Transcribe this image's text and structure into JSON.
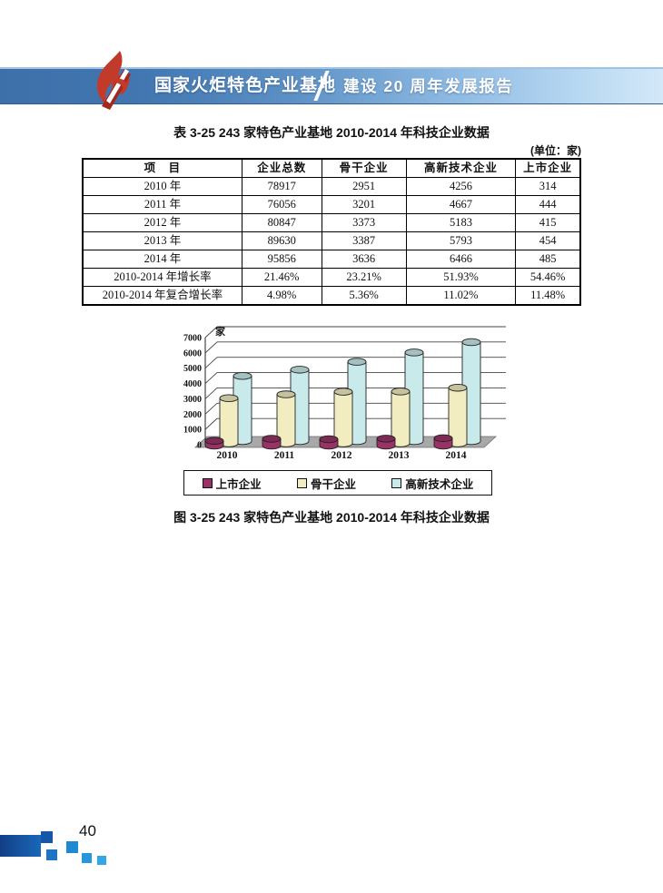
{
  "banner": {
    "site_title": "国家火炬特色产业基地",
    "report_title": "建设 20 周年发展报告"
  },
  "table": {
    "title": "表 3-25  243 家特色产业基地 2010-2014 年科技企业数据",
    "unit": "(单位：家)",
    "headers": [
      "项　目",
      "企业总数",
      "骨干企业",
      "高新技术企业",
      "上市企业"
    ],
    "rows": [
      [
        "2010 年",
        "78917",
        "2951",
        "4256",
        "314"
      ],
      [
        "2011 年",
        "76056",
        "3201",
        "4667",
        "444"
      ],
      [
        "2012 年",
        "80847",
        "3373",
        "5183",
        "415"
      ],
      [
        "2013 年",
        "89630",
        "3387",
        "5793",
        "454"
      ],
      [
        "2014 年",
        "95856",
        "3636",
        "6466",
        "485"
      ],
      [
        "2010-2014 年增长率",
        "21.46%",
        "23.21%",
        "51.93%",
        "54.46%"
      ],
      [
        "2010-2014 年复合增长率",
        "4.98%",
        "5.36%",
        "11.02%",
        "11.48%"
      ]
    ]
  },
  "chart_data": {
    "type": "bar",
    "subtype": "3d-cylinder",
    "title": "",
    "unit_label": "家",
    "categories": [
      "2010",
      "2011",
      "2012",
      "2013",
      "2014"
    ],
    "series": [
      {
        "name": "上市企业",
        "color": "#993366",
        "values": [
          314,
          444,
          415,
          454,
          485
        ]
      },
      {
        "name": "骨干企业",
        "color": "#F2EDC0",
        "values": [
          2951,
          3201,
          3373,
          3387,
          3636
        ]
      },
      {
        "name": "高新技术企业",
        "color": "#C8EAEA",
        "values": [
          4256,
          4667,
          5183,
          5793,
          6466
        ]
      }
    ],
    "ylim": [
      0,
      7000
    ],
    "ytick_step": 1000,
    "grid": true,
    "legend_position": "bottom"
  },
  "figure_caption": "图 3-25  243 家特色产业基地 2010-2014 年科技企业数据",
  "footer": {
    "page_number": "40"
  }
}
